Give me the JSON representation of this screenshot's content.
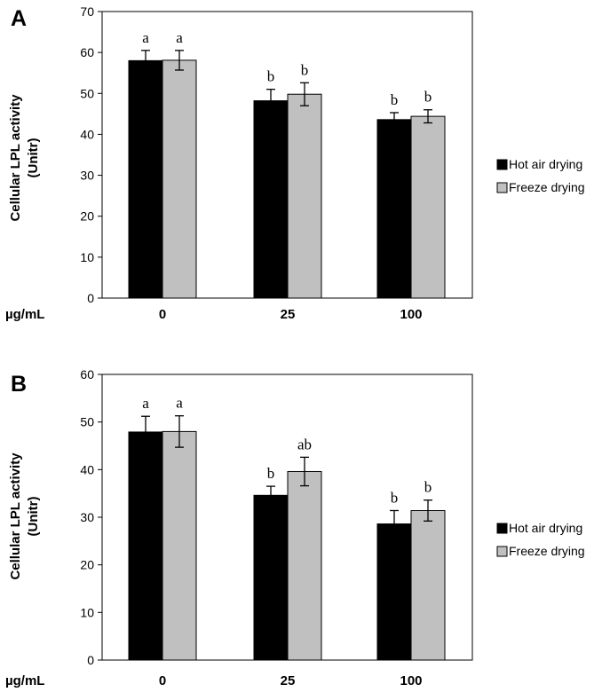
{
  "chart_data": [
    {
      "type": "bar",
      "panel_label": "A",
      "categories": [
        "0",
        "25",
        "100"
      ],
      "x_prefix": "µg/mL",
      "ylabel": [
        "Cellular LPL activity",
        "(Unitr)"
      ],
      "ylim": [
        0,
        70
      ],
      "yticks": [
        0,
        10,
        20,
        30,
        40,
        50,
        60,
        70
      ],
      "series": [
        {
          "name": "Hot air drying",
          "color": "#000000",
          "values": [
            58.0,
            48.2,
            43.6
          ],
          "errors": [
            2.5,
            2.8,
            1.7
          ],
          "labels": [
            "a",
            "b",
            "b"
          ]
        },
        {
          "name": "Freeze drying",
          "color": "#c0c0c0",
          "values": [
            58.1,
            49.8,
            44.4
          ],
          "errors": [
            2.4,
            2.8,
            1.6
          ],
          "labels": [
            "a",
            "b",
            "b"
          ]
        }
      ],
      "legend": "right"
    },
    {
      "type": "bar",
      "panel_label": "B",
      "categories": [
        "0",
        "25",
        "100"
      ],
      "x_prefix": "µg/mL",
      "ylabel": [
        "Cellular LPL activity",
        "(Unitr)"
      ],
      "ylim": [
        0,
        60
      ],
      "yticks": [
        0,
        10,
        20,
        30,
        40,
        50,
        60
      ],
      "series": [
        {
          "name": "Hot air drying",
          "color": "#000000",
          "values": [
            47.9,
            34.6,
            28.6
          ],
          "errors": [
            3.3,
            1.9,
            2.8
          ],
          "labels": [
            "a",
            "b",
            "b"
          ]
        },
        {
          "name": "Freeze drying",
          "color": "#c0c0c0",
          "values": [
            48.0,
            39.6,
            31.4
          ],
          "errors": [
            3.3,
            3.0,
            2.2
          ],
          "labels": [
            "a",
            "ab",
            "b"
          ]
        }
      ],
      "legend": "right"
    }
  ]
}
